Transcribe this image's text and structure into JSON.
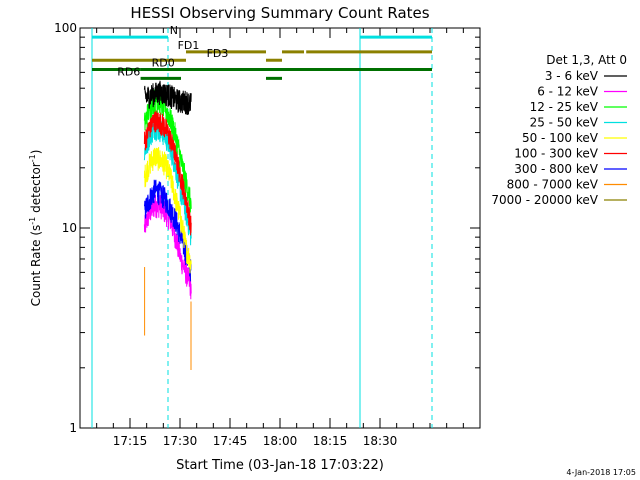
{
  "chart_data": {
    "type": "line",
    "title": "HESSI Observing Summary Count Rates",
    "xlabel": "Start Time (03-Jan-18 17:03:22)",
    "ylabel_main": "Count Rate (s",
    "ylabel_sup": "-1",
    "ylabel_tail": " detector",
    "ylabel_sup2": "-1",
    "ylabel_end": ")",
    "y_scale": "log",
    "ylim": [
      1,
      100
    ],
    "y_ticks": [
      {
        "value": 1,
        "label": "1"
      },
      {
        "value": 10,
        "label": "10"
      },
      {
        "value": 100,
        "label": "100"
      }
    ],
    "x_start_minutes": 17.06,
    "x_end_minutes": 18.95,
    "x_range_hours": [
      17.0,
      19.0
    ],
    "x_ticks": [
      {
        "value": 17.25,
        "label": "17:15"
      },
      {
        "value": 17.5,
        "label": "17:30"
      },
      {
        "value": 17.75,
        "label": "17:45"
      },
      {
        "value": 18.0,
        "label": "18:00"
      },
      {
        "value": 18.25,
        "label": "18:15"
      },
      {
        "value": 18.5,
        "label": "18:30"
      }
    ],
    "legend_title": "Det 1,3, Att 0",
    "legend_position": "right",
    "series": [
      {
        "name": "3 - 6 keV",
        "color": "#000000",
        "start": 17.322,
        "end": 17.556,
        "levels": [
          45,
          46,
          47,
          48,
          47,
          46,
          44,
          43,
          43,
          42
        ]
      },
      {
        "name": "6 - 12 keV",
        "color": "#ff00ff",
        "start": 17.322,
        "end": 17.556,
        "levels": [
          10,
          12,
          13,
          13,
          12,
          11,
          9,
          7,
          6,
          5
        ]
      },
      {
        "name": "12 - 25 keV",
        "color": "#00ff00",
        "start": 17.322,
        "end": 17.556,
        "levels": [
          33,
          40,
          44,
          43,
          40,
          35,
          29,
          22,
          17,
          13
        ]
      },
      {
        "name": "25 - 50 keV",
        "color": "#00e0e0",
        "start": 17.322,
        "end": 17.556,
        "levels": [
          24,
          29,
          32,
          31,
          29,
          25,
          20,
          15,
          12,
          9
        ]
      },
      {
        "name": "50 - 100 keV",
        "color": "#ffff00",
        "start": 17.322,
        "end": 17.556,
        "levels": [
          18,
          21,
          23,
          22,
          21,
          18,
          14,
          11,
          8,
          6.5
        ]
      },
      {
        "name": "100 - 300 keV",
        "color": "#ff0000",
        "start": 17.322,
        "end": 17.556,
        "levels": [
          27,
          32,
          35,
          34,
          32,
          28,
          23,
          18,
          14,
          10
        ]
      },
      {
        "name": "300 - 800 keV",
        "color": "#0000ff",
        "start": 17.322,
        "end": 17.556,
        "levels": [
          12,
          14,
          15.5,
          15,
          14,
          12.5,
          11,
          9,
          7.5,
          6
        ]
      },
      {
        "name": "800 - 7000 keV",
        "color": "#ff8c00",
        "start": 17.322,
        "end": 17.556,
        "levels": [
          7,
          8,
          8.5,
          8.3,
          8,
          7,
          6,
          5,
          4.2,
          3.6
        ]
      },
      {
        "name": "7000 - 20000 keV",
        "color": "#8b8000",
        "start": 17.322,
        "end": 17.556,
        "levels": []
      }
    ],
    "spikes": [
      {
        "x": 17.323,
        "y": 2.9,
        "color": "#ff8c00"
      },
      {
        "x": 17.555,
        "y": 1.95,
        "color": "#ff8c00"
      }
    ],
    "vertical_markers": [
      {
        "x": 17.06,
        "color": "#00e0e0",
        "style": "solid"
      },
      {
        "x": 17.44,
        "color": "#00e0e0",
        "style": "dashed"
      },
      {
        "x": 18.4,
        "color": "#00e0e0",
        "style": "solid"
      },
      {
        "x": 18.76,
        "color": "#00e0e0",
        "style": "dashed"
      }
    ],
    "flag_bars": [
      {
        "y": 90,
        "color": "#00e0e0",
        "segments": [
          [
            17.06,
            17.44
          ],
          [
            18.4,
            18.76
          ]
        ],
        "label": "N",
        "label_x": 17.449
      },
      {
        "y": 76,
        "color": "#8b8000",
        "segments": [
          [
            17.53,
            17.93
          ],
          [
            18.01,
            18.12
          ],
          [
            18.131,
            18.76
          ]
        ],
        "label": "FD1",
        "label_x": 17.488
      },
      {
        "y": 69,
        "color": "#8b8000",
        "segments": [
          [
            17.06,
            17.53
          ],
          [
            17.93,
            18.01
          ]
        ],
        "label": "FD3",
        "label_x": 17.633
      },
      {
        "y": 62,
        "color": "#007000",
        "segments": [
          [
            17.06,
            17.303
          ],
          [
            17.303,
            17.655
          ],
          [
            17.655,
            18.76
          ]
        ],
        "label": "RD0",
        "label_x": 17.358
      },
      {
        "y": 56,
        "color": "#007000",
        "segments": [
          [
            17.303,
            17.505
          ],
          [
            17.93,
            18.01
          ]
        ],
        "label": "RD6",
        "label_x": 17.186
      }
    ],
    "footer_stamp": "4-Jan-2018 17:05"
  }
}
